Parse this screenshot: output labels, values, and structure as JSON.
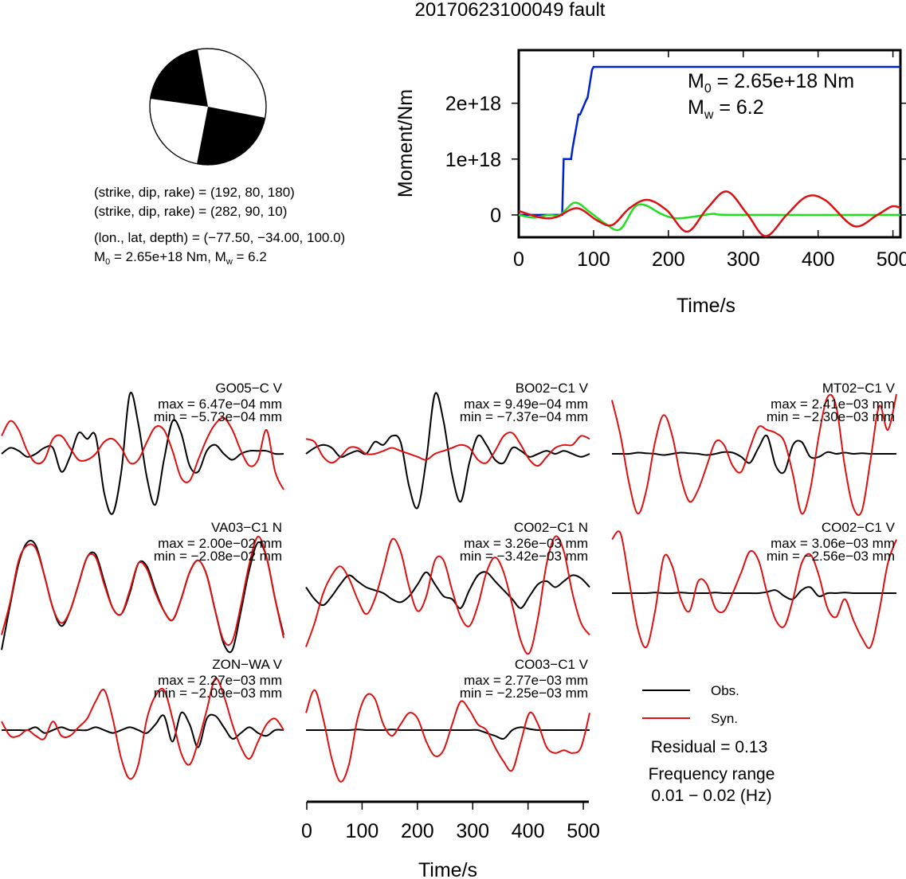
{
  "title": "20170623100049 fault",
  "mechanism": {
    "plane1": "(strike, dip, rake) = (192, 80, 180)",
    "plane2": "(strike, dip, rake) = (282, 90, 10)",
    "location": "(lon., lat, depth) = (−77.50, −34.00, 100.0)",
    "moment_prefix": "M",
    "moment_sub": "0",
    "moment_mid": " = 2.65e+18 Nm, M",
    "moment_sub2": "w",
    "moment_tail": " = 6.2"
  },
  "colors": {
    "obs": "#000000",
    "syn": "#dd1111",
    "moment": "#0022cc",
    "rate": "#22dd22"
  },
  "chart_data": [
    {
      "type": "line",
      "id": "moment",
      "xlabel": "Time/s",
      "ylabel": "Moment/Nm",
      "xlim": [
        0,
        510
      ],
      "ylim": [
        -4e+17,
        2.95e+18
      ],
      "xticks": [
        0,
        100,
        200,
        300,
        400,
        500
      ],
      "xtick_labels": [
        "0",
        "100",
        "200",
        "300",
        "400",
        "500"
      ],
      "yticks": [
        0,
        1e+18,
        2e+18
      ],
      "ytick_labels": [
        "0",
        "1e+18",
        "2e+18"
      ],
      "annotation_m0_sym": "M",
      "annotation_m0_sub": "0",
      "annotation_m0_val": " = 2.65e+18 Nm",
      "annotation_mw_sym": "M",
      "annotation_mw_sub": "w",
      "annotation_mw_val": " = 6.2",
      "series": [
        {
          "color": "blue",
          "x": [
            0,
            50,
            58,
            60,
            70,
            72,
            80,
            82,
            90,
            92,
            98,
            100,
            510
          ],
          "y": [
            0,
            0,
            0,
            1e+18,
            1e+18,
            1.2e+18,
            1.8e+18,
            1.8e+18,
            2.05e+18,
            2.1e+18,
            2.6e+18,
            2.65e+18,
            2.65e+18
          ]
        },
        {
          "color": "green",
          "x": [
            0,
            20,
            40,
            55,
            75,
            95,
            115,
            135,
            155,
            170,
            190,
            210,
            235,
            260,
            290,
            510
          ],
          "y": [
            0,
            -5e+16,
            0,
            0,
            2.2e+17,
            5e+16,
            -1.5e+17,
            -2.6e+17,
            1.4e+17,
            1.7e+17,
            2e+16,
            -6e+16,
            -3e+16,
            2e+16,
            0,
            0
          ]
        },
        {
          "color": "red",
          "x": [
            0,
            30,
            50,
            78,
            105,
            125,
            148,
            172,
            198,
            225,
            252,
            278,
            305,
            330,
            358,
            385,
            410,
            448,
            478,
            498,
            510
          ],
          "y": [
            7e+16,
            -5e+16,
            -4e+16,
            1.2e+17,
            -1e+17,
            -1.8e+17,
            1.2e+17,
            2.7e+17,
            8e+16,
            -3e+17,
            1.2e+17,
            4.2e+17,
            2e+16,
            -3.8e+17,
            0,
            3.3e+17,
            2.6e+17,
            -2e+17,
            -1e+16,
            1.5e+17,
            1.3e+17
          ]
        }
      ]
    },
    {
      "type": "line",
      "id": "waveforms",
      "xlabel": "Time/s",
      "xlim": [
        0,
        510
      ],
      "xticks": [
        0,
        100,
        200,
        300,
        400,
        500
      ],
      "xtick_labels": [
        "0",
        "100",
        "200",
        "300",
        "400",
        "500"
      ],
      "legend": {
        "obs": "Obs.",
        "syn": "Syn."
      },
      "residual": "Residual = 0.13",
      "freq_label": "Frequency range",
      "freq_range": "0.01 − 0.02 (Hz)",
      "panels": [
        {
          "station": "GO05−C V",
          "max": "max = 6.47e−04 mm",
          "min": "min = −5.73e−04 mm",
          "obs": [
            0,
            0.1,
            0.05,
            -0.05,
            0,
            0.1,
            0.1,
            -0.3,
            -0.05,
            0.35,
            0.25,
            0.3,
            -0.65,
            -1.0,
            -0.3,
            1.0,
            0.5,
            -0.4,
            -0.85,
            -0.1,
            0.55,
            0.35,
            -0.2,
            -0.3,
            0.05,
            0.15,
            0,
            -0.1,
            0,
            0.05,
            0.05,
            0.05,
            0,
            0
          ],
          "syn": [
            0.3,
            0.55,
            0.4,
            0.05,
            -0.15,
            -0.1,
            0.25,
            0.3,
            0.1,
            -0.1,
            -0.1,
            0,
            0.2,
            0.25,
            0.1,
            -0.15,
            -0.1,
            0.2,
            0.45,
            0.4,
            0.05,
            -0.4,
            -0.45,
            -0.1,
            0.25,
            0.5,
            0.6,
            0.4,
            0.05,
            -0.2,
            -0.1,
            0.4,
            -0.3,
            -0.6
          ]
        },
        {
          "station": "BO02−C1 V",
          "max": "max = 9.49e−04 mm",
          "min": "min = −7.37e−04 mm",
          "obs": [
            0,
            0.1,
            0.15,
            0.1,
            -0.05,
            0,
            0.05,
            0,
            0.2,
            0.15,
            0.3,
            0.2,
            -0.55,
            -0.9,
            -0.1,
            1.0,
            0.55,
            -0.35,
            -0.8,
            -0.15,
            0.3,
            0.15,
            -0.1,
            -0.15,
            0.1,
            0.05,
            -0.05,
            0,
            0.05,
            0,
            0.05,
            0,
            -0.05,
            0
          ],
          "syn": [
            0.25,
            0.2,
            -0.05,
            -0.15,
            -0.05,
            0.1,
            0.1,
            0,
            0,
            0.05,
            0.1,
            0.05,
            0,
            -0.05,
            -0.1,
            0,
            0.05,
            0.1,
            0.15,
            0.1,
            -0.1,
            -0.15,
            0.05,
            0.3,
            0.35,
            0.15,
            -0.1,
            -0.2,
            -0.05,
            0.1,
            0.15,
            0.15,
            0.3,
            0.25
          ]
        },
        {
          "station": "MT02−C1 V",
          "max": "max = 2.41e−03 mm",
          "min": "min = −2.30e−03 mm",
          "obs": [
            0,
            0,
            0,
            0.02,
            0.01,
            0,
            -0.02,
            0,
            0.02,
            0.01,
            0,
            -0.02,
            0,
            0.03,
            0.02,
            -0.05,
            -0.15,
            0.1,
            0.3,
            -0.2,
            -0.3,
            0.15,
            0.2,
            -0.05,
            -0.05,
            0.03,
            0,
            0.02,
            0,
            0.01,
            0,
            0,
            0,
            0
          ],
          "syn": [
            0.9,
            0.3,
            -0.5,
            -1.0,
            -0.6,
            0.2,
            0.65,
            0.3,
            -0.4,
            -0.8,
            -0.6,
            -0.2,
            0.2,
            0.15,
            -0.2,
            -0.3,
            0.1,
            0.45,
            0.4,
            0.35,
            0.2,
            -0.35,
            -1.0,
            -0.6,
            0.3,
            0.95,
            0.8,
            -0.2,
            -0.9,
            -0.95,
            -0.1,
            0.8,
            0.4,
            1.0
          ]
        },
        {
          "station": "VA03−C1 N",
          "max": "max = 2.00e−02 mm",
          "min": "min = −2.08e−02 mm",
          "obs": [
            -0.95,
            -0.2,
            0.5,
            0.85,
            0.8,
            0.3,
            -0.25,
            -0.55,
            -0.3,
            0.15,
            0.6,
            0.65,
            0.2,
            -0.25,
            -0.35,
            0,
            0.5,
            0.45,
            0.05,
            -0.3,
            -0.45,
            -0.1,
            0.35,
            0.55,
            0.3,
            -0.3,
            -0.85,
            -0.95,
            -0.3,
            0.4,
            0.85,
            0.6,
            -0.1,
            -0.7
          ],
          "syn": [
            -0.7,
            -0.15,
            0.55,
            0.8,
            0.75,
            0.3,
            -0.25,
            -0.5,
            -0.3,
            0.15,
            0.6,
            0.6,
            0.15,
            -0.25,
            -0.35,
            0.05,
            0.5,
            0.4,
            0.0,
            -0.3,
            -0.45,
            -0.1,
            0.35,
            0.55,
            0.3,
            -0.3,
            -0.8,
            -0.8,
            -0.2,
            0.5,
            0.95,
            0.6,
            -0.1,
            -0.75
          ]
        },
        {
          "station": "CO02−C1 N",
          "max": "max = 3.26e−03 mm",
          "min": "min = −3.42e−03 mm",
          "obs": [
            0.1,
            -0.1,
            -0.2,
            -0.05,
            0.15,
            0.3,
            0.2,
            0.1,
            0.05,
            0,
            -0.1,
            -0.15,
            -0.05,
            0.15,
            0.35,
            0.15,
            -0.05,
            -0.1,
            -0.25,
            0.05,
            0.3,
            0.35,
            0.2,
            0.05,
            -0.1,
            -0.25,
            -0.05,
            0.15,
            0.2,
            0.1,
            0.2,
            0.3,
            0.25,
            0.1
          ],
          "syn": [
            -0.9,
            -0.5,
            0.0,
            0.3,
            0.45,
            0.25,
            -0.1,
            -0.35,
            -0.1,
            0.4,
            0.9,
            0.7,
            0.1,
            -0.3,
            -0.05,
            0.55,
            0.55,
            0.05,
            -0.4,
            -0.55,
            -0.2,
            0.35,
            0.6,
            0.35,
            -0.2,
            -0.8,
            -1.0,
            -0.4,
            0.5,
            0.95,
            0.7,
            0.0,
            -0.5,
            -0.7
          ]
        },
        {
          "station": "CO02−C1 V",
          "max": "max = 3.06e−03 mm",
          "min": "min = −2.56e−03 mm",
          "obs": [
            0,
            0,
            0,
            0,
            0,
            0.01,
            0,
            0,
            0.01,
            0,
            0,
            0,
            0.01,
            0,
            0,
            0,
            0,
            0,
            0.02,
            0.05,
            -0.05,
            -0.1,
            0.05,
            0.1,
            -0.05,
            0,
            0,
            0.01,
            0,
            0,
            0,
            0,
            0,
            0
          ],
          "syn": [
            0.9,
            1.0,
            0.2,
            -0.6,
            -0.9,
            -0.3,
            0.6,
            0.45,
            -0.1,
            -0.3,
            0.2,
            0.15,
            -0.25,
            -0.3,
            0.0,
            0.35,
            0.7,
            0.55,
            0.0,
            -0.45,
            -0.55,
            -0.1,
            0.5,
            0.65,
            0.3,
            -0.25,
            -0.4,
            -0.1,
            -0.45,
            -0.75,
            -0.9,
            -0.3,
            0.5,
            0.9
          ]
        },
        {
          "station": "ZON−WA V",
          "max": "max = 2.27e−03 mm",
          "min": "min = −2.09e−03 mm",
          "obs": [
            0,
            0,
            0,
            0,
            0.05,
            -0.05,
            0,
            0.05,
            0,
            0,
            0,
            0.05,
            0,
            -0.05,
            0,
            0.05,
            0,
            -0.05,
            0.1,
            0.25,
            -0.2,
            0.3,
            0.1,
            -0.3,
            0.2,
            0.25,
            0.05,
            -0.15,
            -0.05,
            0.05,
            -0.05,
            -0.1,
            0,
            0
          ],
          "syn": [
            0.15,
            -0.1,
            -0.1,
            0,
            -0.1,
            -0.15,
            0.15,
            -0.1,
            -0.1,
            0.05,
            0.2,
            0.5,
            0.7,
            0.2,
            -0.5,
            -0.85,
            -0.6,
            0.2,
            0.6,
            0.7,
            0.2,
            -0.4,
            -0.6,
            -0.2,
            0.35,
            0.9,
            0.6,
            0.1,
            -0.3,
            -0.5,
            -0.2,
            0.1,
            0.2,
            0
          ]
        },
        {
          "station": "CO03−C1 V",
          "max": "max = 2.77e−03 mm",
          "min": "min = −2.25e−03 mm",
          "obs": [
            0,
            0,
            0,
            0,
            0,
            0,
            0.01,
            0,
            0,
            0,
            0.01,
            0,
            0,
            0,
            0,
            0,
            0,
            0,
            0,
            0,
            0,
            -0.05,
            -0.1,
            -0.15,
            0,
            0.05,
            0.02,
            0,
            0,
            0,
            0,
            0,
            0,
            0
          ],
          "syn": [
            0.3,
            0.7,
            0.2,
            -0.5,
            -0.9,
            -0.6,
            0.2,
            0.6,
            0.55,
            0.1,
            -0.1,
            0.1,
            0.3,
            0.2,
            -0.2,
            -0.45,
            -0.35,
            0.1,
            0.5,
            0.35,
            0.1,
            0.0,
            -0.3,
            -0.55,
            -0.7,
            -0.2,
            0.3,
            0.1,
            -0.3,
            -0.4,
            -0.35,
            -0.4,
            -0.3,
            0.3
          ]
        }
      ]
    }
  ]
}
